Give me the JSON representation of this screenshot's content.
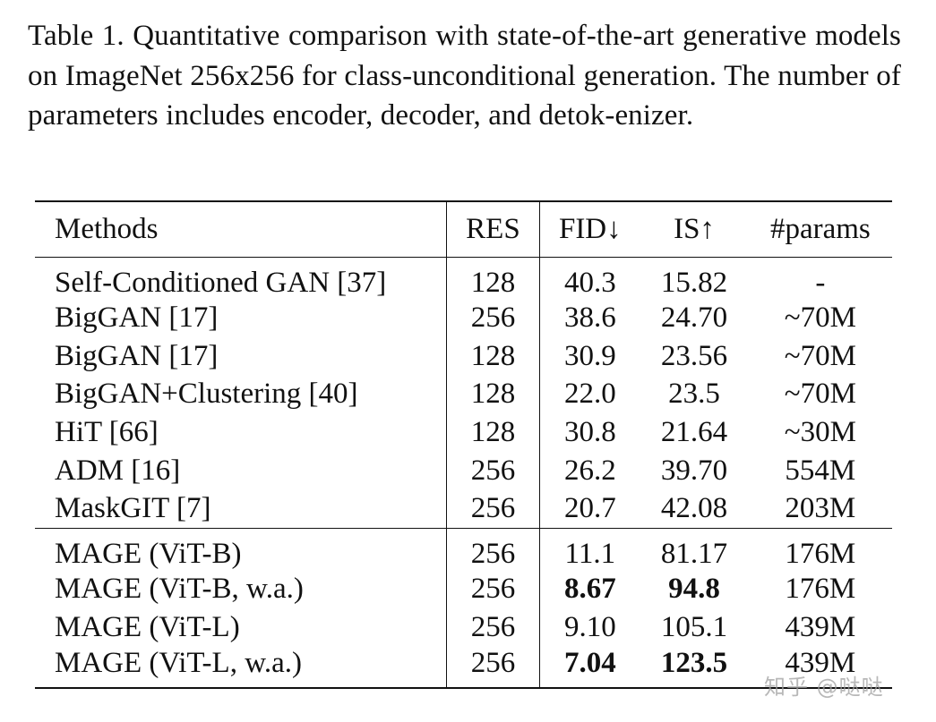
{
  "caption": "Table 1. Quantitative comparison with state-of-the-art generative models on ImageNet 256x256 for class-unconditional generation. The number of parameters includes encoder, decoder, and detok-enizer.",
  "table": {
    "headers": [
      "Methods",
      "RES",
      "FID↓",
      "IS↑",
      "#params"
    ],
    "group1": [
      {
        "method": "Self-Conditioned GAN [37]",
        "res": "128",
        "fid": "40.3",
        "is": "15.82",
        "params": "-"
      },
      {
        "method": "BigGAN [17]",
        "res": "256",
        "fid": "38.6",
        "is": "24.70",
        "params": "~70M"
      },
      {
        "method": "BigGAN [17]",
        "res": "128",
        "fid": "30.9",
        "is": "23.56",
        "params": "~70M"
      },
      {
        "method": "BigGAN+Clustering [40]",
        "res": "128",
        "fid": "22.0",
        "is": "23.5",
        "params": "~70M"
      },
      {
        "method": "HiT [66]",
        "res": "128",
        "fid": "30.8",
        "is": "21.64",
        "params": "~30M"
      },
      {
        "method": "ADM [16]",
        "res": "256",
        "fid": "26.2",
        "is": "39.70",
        "params": "554M"
      },
      {
        "method": "MaskGIT [7]",
        "res": "256",
        "fid": "20.7",
        "is": "42.08",
        "params": "203M"
      }
    ],
    "group2": [
      {
        "method": "MAGE (ViT-B)",
        "res": "256",
        "fid": "11.1",
        "is": "81.17",
        "params": "176M"
      },
      {
        "method": "MAGE (ViT-B, w.a.)",
        "res": "256",
        "fid": "8.67",
        "is": "94.8",
        "params": "176M"
      },
      {
        "method": "MAGE (ViT-L)",
        "res": "256",
        "fid": "9.10",
        "is": "105.1",
        "params": "439M"
      },
      {
        "method": "MAGE (ViT-L, w.a.)",
        "res": "256",
        "fid": "7.04",
        "is": "123.5",
        "params": "439M"
      }
    ]
  },
  "watermark": "知乎 @哒哒"
}
